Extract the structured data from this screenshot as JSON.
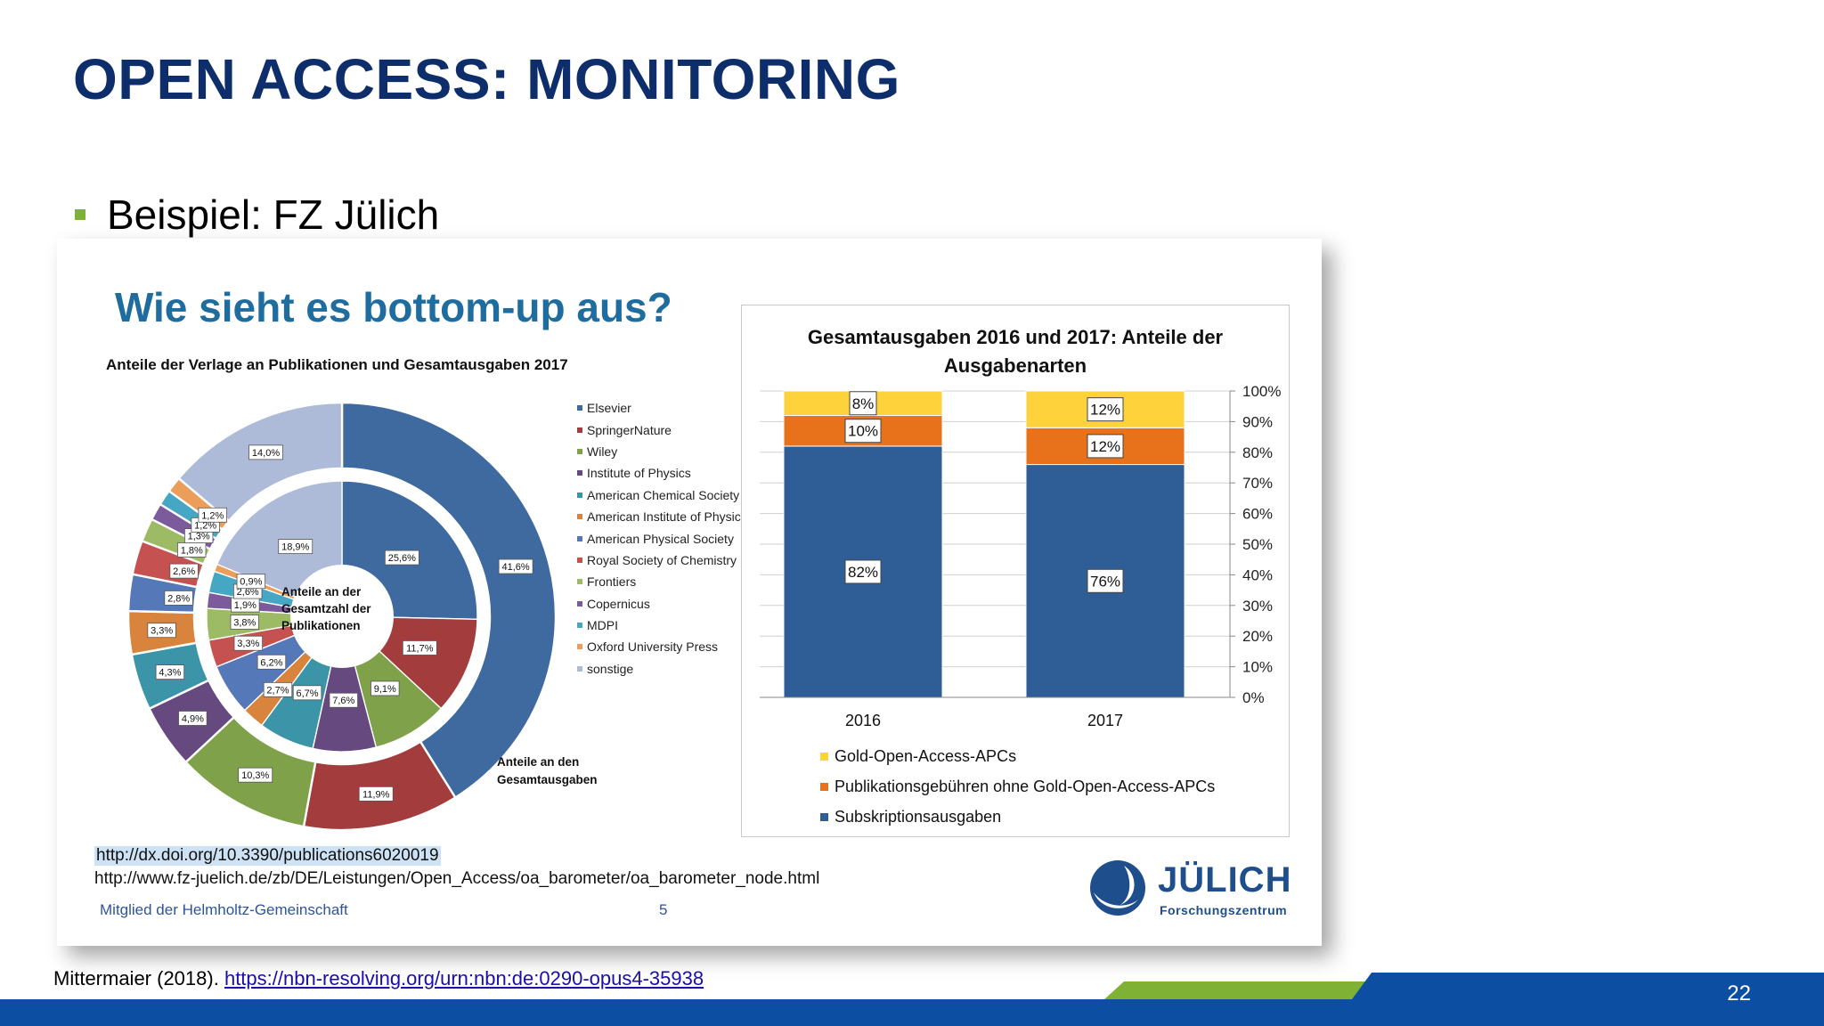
{
  "slide": {
    "title": "OPEN ACCESS: MONITORING",
    "bullet": "Beispiel: FZ Jülich",
    "citation_author": "Mittermaier (2018). ",
    "citation_link": "https://nbn-resolving.org/urn:nbn:de:0290-opus4-35938",
    "page_number": "22"
  },
  "embed": {
    "title": "Wie sieht es bottom-up aus?",
    "donut_title": "Anteile der Verlage an Publikationen und Gesamtausgaben 2017",
    "inner_caption": "Anteile an der Gesamtzahl der Publikationen",
    "outer_caption": "Anteile an den Gesamtausgaben",
    "link_1": "http://dx.doi.org/10.3390/publications6020019",
    "link_2": "http://www.fz-juelich.de/zb/DE/Leistungen/Open_Access/oa_barometer/oa_barometer_node.html",
    "member_text": "Mitglied der Helmholtz-Gemeinschaft",
    "page_number": "5",
    "logo_text": "JÜLICH",
    "logo_subtext": "Forschungszentrum"
  },
  "chart_data": [
    {
      "type": "pie",
      "title": "Anteile der Verlage an Publikationen und Gesamtausgaben 2017",
      "categories": [
        "Elsevier",
        "SpringerNature",
        "Wiley",
        "Institute of Physics",
        "American Chemical Society",
        "American Institute of Physics",
        "American Physical Society",
        "Royal Society of Chemistry",
        "Frontiers",
        "Copernicus",
        "MDPI",
        "Oxford University Press",
        "sonstige"
      ],
      "colors": [
        "#3f6aa0",
        "#a33c3c",
        "#7ea14a",
        "#66497f",
        "#3b94a8",
        "#d9843c",
        "#5478b8",
        "#c55151",
        "#9dbb64",
        "#7c5b9c",
        "#46a7c4",
        "#eb9d5a",
        "#aebbd8"
      ],
      "series": [
        {
          "name": "Anteile an der Gesamtzahl der Publikationen",
          "values": [
            25.6,
            11.7,
            9.1,
            7.6,
            6.7,
            2.7,
            6.2,
            3.3,
            3.8,
            1.9,
            2.6,
            0.9,
            18.9
          ],
          "labels": [
            "25,6%",
            "11,7%",
            "9,1%",
            "7,6%",
            "6,7%",
            "2,7%",
            "6,2%",
            "3,3%",
            "3,8%",
            "1,9%",
            "2,6%",
            "0,9%",
            "18,9%"
          ]
        },
        {
          "name": "Anteile an den Gesamtausgaben",
          "values": [
            41.6,
            11.9,
            10.3,
            4.9,
            4.3,
            3.3,
            2.8,
            2.6,
            1.8,
            1.3,
            1.2,
            1.2,
            14.0
          ],
          "labels": [
            "41,6%",
            "11,9%",
            "10,3%",
            "4,9%",
            "4,3%",
            "3,3%",
            "2,8%",
            "2,6%",
            "1,8%",
            "1,3%",
            "1,2%",
            "1,2%",
            "14,0%"
          ]
        }
      ]
    },
    {
      "type": "bar",
      "stacked": true,
      "title": "Gesamtausgaben 2016 und 2017: Anteile der Ausgabenarten",
      "categories": [
        "2016",
        "2017"
      ],
      "ylim": [
        0,
        100
      ],
      "y_ticks": [
        "0%",
        "10%",
        "20%",
        "30%",
        "40%",
        "50%",
        "60%",
        "70%",
        "80%",
        "90%",
        "100%"
      ],
      "series": [
        {
          "name": "Subskriptionsausgaben",
          "values": [
            82,
            76
          ],
          "labels": [
            "82%",
            "76%"
          ],
          "color": "#2e5e95"
        },
        {
          "name": "Publikationsgebühren ohne Gold-Open-Access-APCs",
          "values": [
            10,
            12
          ],
          "labels": [
            "10%",
            "12%"
          ],
          "color": "#e8711c"
        },
        {
          "name": "Gold-Open-Access-APCs",
          "values": [
            8,
            12
          ],
          "labels": [
            "8%",
            "12%"
          ],
          "color": "#fdd23b"
        }
      ]
    }
  ],
  "colors": {
    "title": "#0d2e6b",
    "embed_title": "#1f6c9e",
    "footer_blue": "#0b4ea2",
    "footer_green": "#7fb135",
    "bullet": "#7fb135"
  }
}
